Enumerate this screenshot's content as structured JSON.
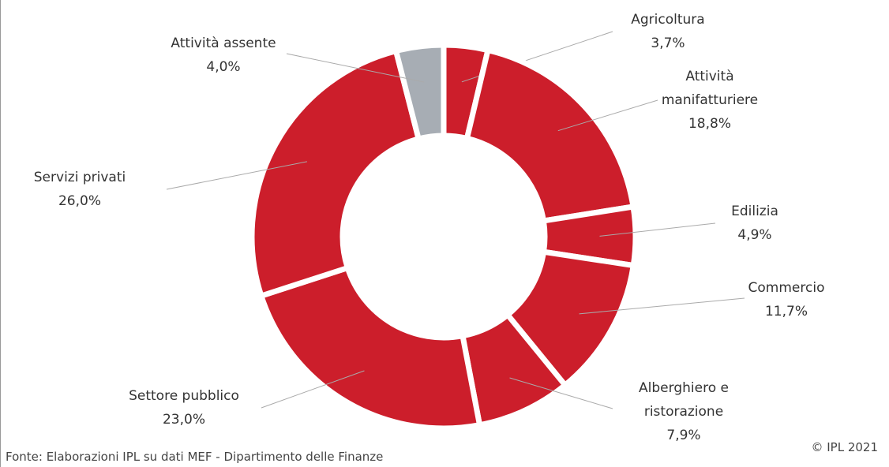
{
  "chart_data": {
    "type": "donut",
    "categories": [
      "Agricoltura",
      "Attività manifatturiere",
      "Edilizia",
      "Commercio",
      "Alberghiero e ristorazione",
      "Settore pubblico",
      "Servizi privati",
      "Attività assente"
    ],
    "values": [
      3.7,
      18.8,
      4.9,
      11.7,
      7.9,
      23.0,
      26.0,
      4.0
    ],
    "value_labels": [
      "3,7%",
      "18,8%",
      "4,9%",
      "11,7%",
      "7,9%",
      "23,0%",
      "26,0%",
      "4,0%"
    ],
    "colors": [
      "#cc1e2b",
      "#cc1e2b",
      "#cc1e2b",
      "#cc1e2b",
      "#cc1e2b",
      "#cc1e2b",
      "#cc1e2b",
      "#a7adb4"
    ],
    "source": "Fonte: Elaborazioni IPL su dati MEF - Dipartimento delle Finanze",
    "copyright": "© IPL 2021"
  }
}
